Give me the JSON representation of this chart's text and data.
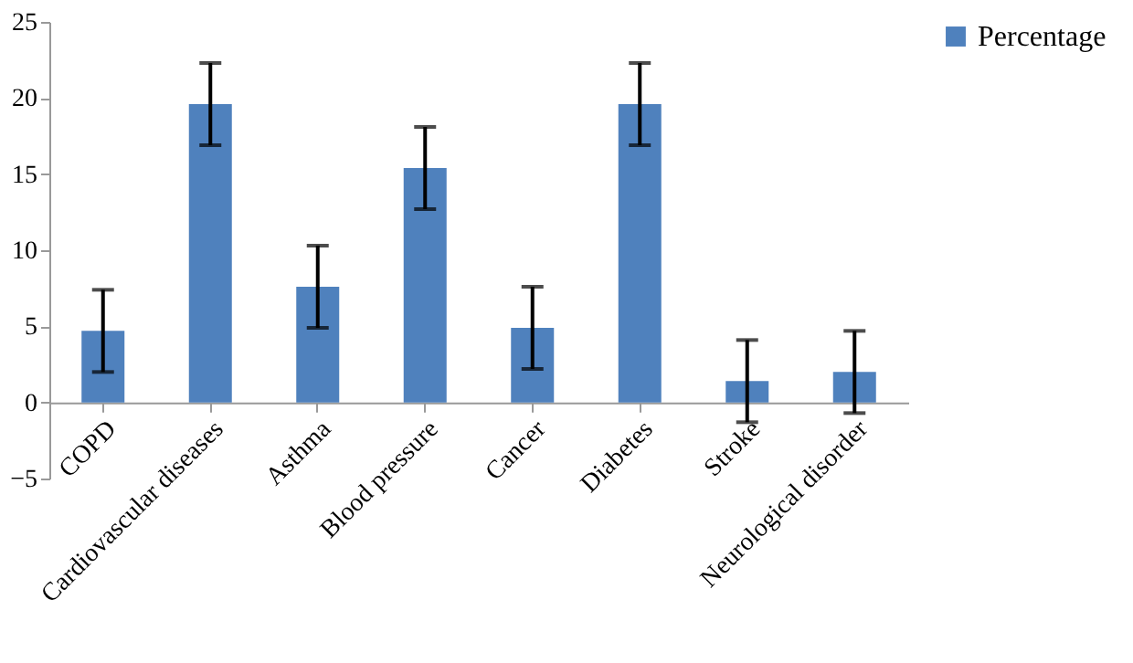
{
  "chart_data": {
    "type": "bar",
    "categories": [
      "COPD",
      "Cardiovascular diseases",
      "Asthma",
      "Blood pressure",
      "Cancer",
      "Diabetes",
      "Stroke",
      "Neurological disorder"
    ],
    "series": [
      {
        "name": "Percentage",
        "color": "#4f81bd",
        "values": [
          4.7,
          19.6,
          7.6,
          15.4,
          4.9,
          19.6,
          1.4,
          2.0
        ],
        "errors": [
          2.7,
          2.7,
          2.7,
          2.7,
          2.7,
          2.7,
          2.7,
          2.7
        ]
      }
    ],
    "ylim": [
      -5,
      25
    ],
    "yticks": [
      -5,
      0,
      5,
      10,
      15,
      20,
      25
    ],
    "grid": false,
    "legend": "right"
  }
}
